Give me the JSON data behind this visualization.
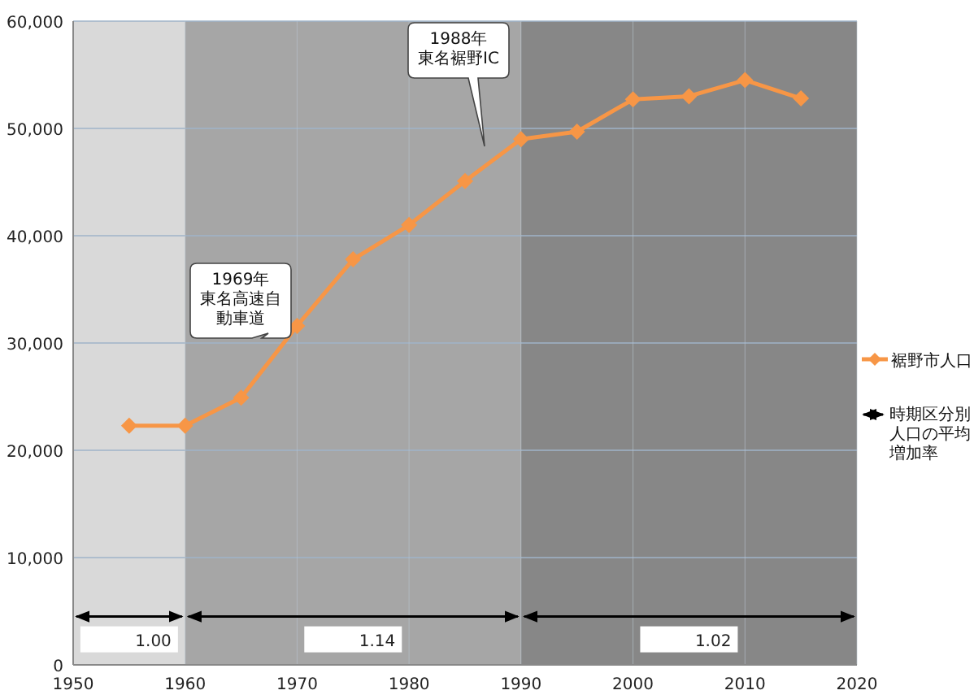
{
  "chart_data": {
    "type": "line",
    "x": [
      1955,
      1960,
      1965,
      1970,
      1975,
      1980,
      1985,
      1990,
      1995,
      2000,
      2005,
      2010,
      2015
    ],
    "series": [
      {
        "name": "裾野市人口",
        "color": "#f79646",
        "values": [
          22300,
          22300,
          24900,
          31600,
          37800,
          41000,
          45100,
          49000,
          49700,
          52700,
          53000,
          54500,
          52800
        ]
      }
    ],
    "xlim": [
      1950,
      2020
    ],
    "xticks": [
      1950,
      1960,
      1970,
      1980,
      1990,
      2000,
      2010,
      2020
    ],
    "ylim": [
      0,
      60000
    ],
    "yticks": [
      {
        "value": 0,
        "label": "0"
      },
      {
        "value": 10000,
        "label": "10,000"
      },
      {
        "value": 20000,
        "label": "20,000"
      },
      {
        "value": 30000,
        "label": "30,000"
      },
      {
        "value": 40000,
        "label": "40,000"
      },
      {
        "value": 50000,
        "label": "50,000"
      },
      {
        "value": 60000,
        "label": "60,000"
      }
    ],
    "bands": [
      {
        "axis": "x",
        "from": 1950,
        "to": 1960,
        "label": "1.00",
        "color": "#d9d9d9"
      },
      {
        "axis": "x",
        "from": 1960,
        "to": 1990,
        "label": "1.14",
        "color": "#a6a6a6"
      },
      {
        "axis": "x",
        "from": 1990,
        "to": 2020,
        "label": "1.02",
        "color": "#878787"
      }
    ],
    "annotations": [
      "1969年東名高速自動車道",
      "1988年東名裾野IC",
      "時期区分別人口の平均増加率"
    ],
    "grid": true,
    "legend": "right",
    "marker": "diamond",
    "line_style": "solid"
  }
}
